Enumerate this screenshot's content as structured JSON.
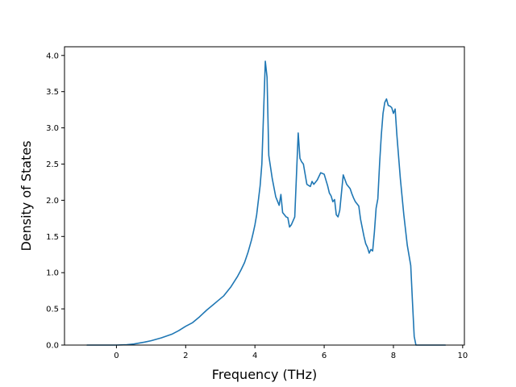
{
  "chart_data": {
    "type": "line",
    "title": "",
    "xlabel": "Frequency (THz)",
    "ylabel": "Density of States",
    "xlim": [
      -1.5,
      10.05
    ],
    "ylim": [
      0.0,
      4.12
    ],
    "xticks": [
      0,
      2,
      4,
      6,
      8,
      10
    ],
    "xtick_labels": [
      "0",
      "2",
      "4",
      "6",
      "8",
      "10"
    ],
    "yticks": [
      0.0,
      0.5,
      1.0,
      1.5,
      2.0,
      2.5,
      3.0,
      3.5,
      4.0
    ],
    "ytick_labels": [
      "0.0",
      "0.5",
      "1.0",
      "1.5",
      "2.0",
      "2.5",
      "3.0",
      "3.5",
      "4.0"
    ],
    "grid": false,
    "legend": "none",
    "series": [
      {
        "color": "#1f77b4",
        "x": [
          -0.85,
          0.0,
          0.3,
          0.5,
          0.8,
          1.0,
          1.3,
          1.6,
          1.8,
          2.0,
          2.2,
          2.4,
          2.6,
          2.8,
          2.95,
          3.1,
          3.3,
          3.5,
          3.6,
          3.7,
          3.8,
          3.9,
          3.95,
          4.0,
          4.05,
          4.1,
          4.15,
          4.2,
          4.3,
          4.35,
          4.4,
          4.5,
          4.6,
          4.7,
          4.75,
          4.8,
          4.9,
          4.95,
          5.0,
          5.05,
          5.15,
          5.25,
          5.3,
          5.35,
          5.4,
          5.5,
          5.6,
          5.65,
          5.7,
          5.8,
          5.9,
          6.0,
          6.1,
          6.15,
          6.2,
          6.25,
          6.3,
          6.35,
          6.4,
          6.45,
          6.55,
          6.65,
          6.75,
          6.8,
          6.85,
          6.9,
          7.0,
          7.05,
          7.15,
          7.2,
          7.25,
          7.3,
          7.35,
          7.4,
          7.45,
          7.5,
          7.55,
          7.6,
          7.65,
          7.7,
          7.75,
          7.8,
          7.85,
          7.9,
          7.95,
          8.0,
          8.05,
          8.1,
          8.2,
          8.3,
          8.4,
          8.5,
          8.55,
          8.6,
          8.65,
          8.7,
          9.0,
          9.5
        ],
        "y": [
          0.0,
          0.0,
          0.005,
          0.015,
          0.04,
          0.06,
          0.1,
          0.15,
          0.2,
          0.26,
          0.31,
          0.39,
          0.48,
          0.56,
          0.62,
          0.68,
          0.8,
          0.95,
          1.04,
          1.14,
          1.28,
          1.45,
          1.55,
          1.66,
          1.8,
          2.0,
          2.2,
          2.5,
          3.92,
          3.7,
          2.62,
          2.3,
          2.05,
          1.93,
          2.08,
          1.83,
          1.77,
          1.76,
          1.63,
          1.66,
          1.77,
          2.93,
          2.58,
          2.53,
          2.5,
          2.22,
          2.19,
          2.26,
          2.22,
          2.28,
          2.38,
          2.36,
          2.2,
          2.1,
          2.06,
          1.98,
          2.01,
          1.8,
          1.77,
          1.86,
          2.35,
          2.22,
          2.16,
          2.09,
          2.03,
          1.98,
          1.92,
          1.74,
          1.5,
          1.4,
          1.35,
          1.27,
          1.32,
          1.3,
          1.56,
          1.89,
          2.02,
          2.5,
          2.9,
          3.2,
          3.35,
          3.4,
          3.31,
          3.3,
          3.28,
          3.2,
          3.26,
          2.9,
          2.3,
          1.8,
          1.38,
          1.1,
          0.6,
          0.12,
          0.0,
          0.0,
          0.0,
          0.0
        ]
      }
    ]
  }
}
